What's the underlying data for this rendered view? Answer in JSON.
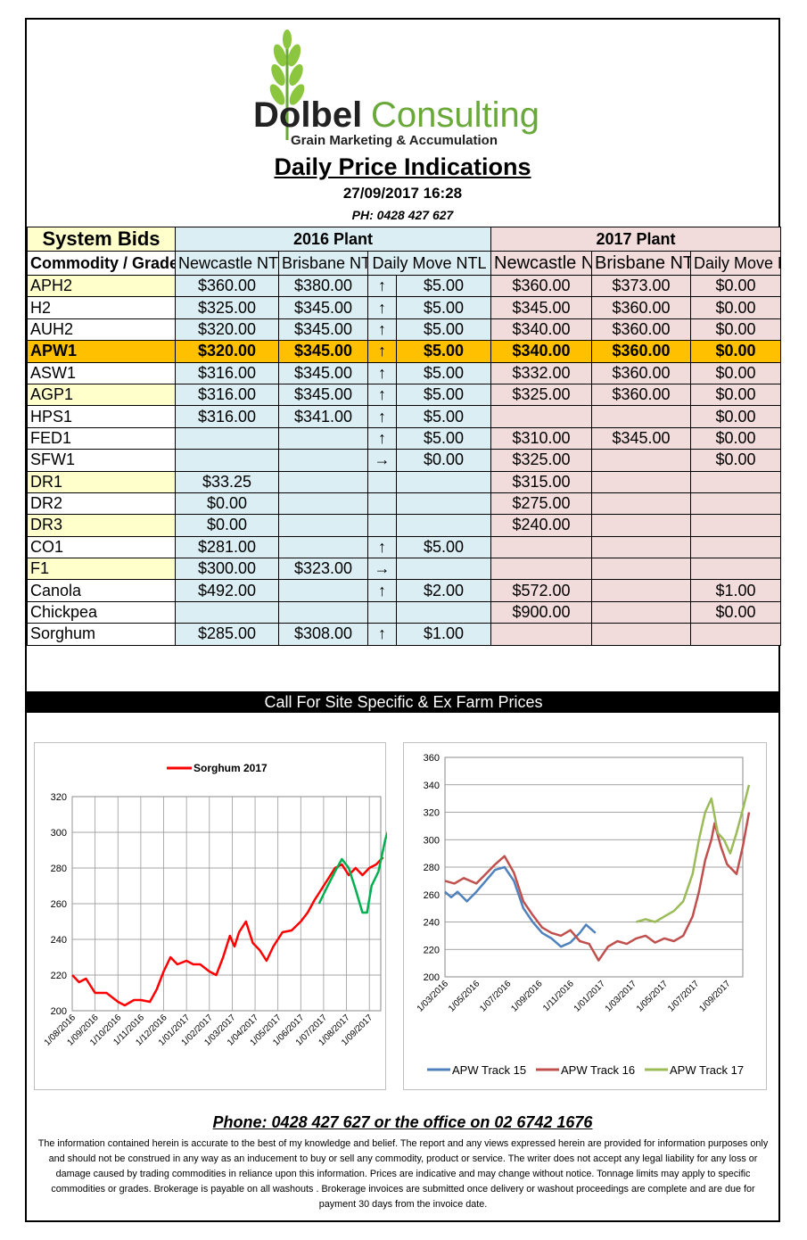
{
  "logo": {
    "brand_bold": "Dolbel",
    "brand_light": "Consulting",
    "tagline": "Grain Marketing & Accumulation"
  },
  "header": {
    "title": "Daily Price Indications",
    "datetime": "27/09/2017 16:28",
    "phone": "PH: 0428 427 627"
  },
  "table": {
    "system_bids": "System Bids",
    "plant_2016": "2016 Plant",
    "plant_2017": "2017 Plant",
    "col_commodity": "Commodity / Grade / NTP",
    "col_newcastle_2016": "Newcastle NTP TRK",
    "col_brisbane_2016": "Brisbane NTP TRK",
    "col_daily_2016": "Daily Move NTL",
    "col_newcastle_2017": "Newcastle NTP TRK",
    "col_brisbane_2017": "Brisbane NTP TRK",
    "col_daily_2017": "Daily Move NTL",
    "rows": [
      {
        "grade": "APH2",
        "n16": "$360.00",
        "b16": "$380.00",
        "arrow": "↑",
        "d16": "$5.00",
        "n17": "$360.00",
        "b17": "$373.00",
        "d17": "$0.00",
        "hl": "yl"
      },
      {
        "grade": "H2",
        "n16": "$325.00",
        "b16": "$345.00",
        "arrow": "↑",
        "d16": "$5.00",
        "n17": "$345.00",
        "b17": "$360.00",
        "d17": "$0.00",
        "hl": ""
      },
      {
        "grade": "AUH2",
        "n16": "$320.00",
        "b16": "$345.00",
        "arrow": "↑",
        "d16": "$5.00",
        "n17": "$340.00",
        "b17": "$360.00",
        "d17": "$0.00",
        "hl": ""
      },
      {
        "grade": "APW1",
        "n16": "$320.00",
        "b16": "$345.00",
        "arrow": "↑",
        "d16": "$5.00",
        "n17": "$340.00",
        "b17": "$360.00",
        "d17": "$0.00",
        "hl": "gold"
      },
      {
        "grade": "ASW1",
        "n16": "$316.00",
        "b16": "$345.00",
        "arrow": "↑",
        "d16": "$5.00",
        "n17": "$332.00",
        "b17": "$360.00",
        "d17": "$0.00",
        "hl": ""
      },
      {
        "grade": "AGP1",
        "n16": "$316.00",
        "b16": "$345.00",
        "arrow": "↑",
        "d16": "$5.00",
        "n17": "$325.00",
        "b17": "$360.00",
        "d17": "$0.00",
        "hl": "yl"
      },
      {
        "grade": "HPS1",
        "n16": "$316.00",
        "b16": "$341.00",
        "arrow": "↑",
        "d16": "$5.00",
        "n17": "",
        "b17": "",
        "d17": "$0.00",
        "hl": ""
      },
      {
        "grade": "FED1",
        "n16": "",
        "b16": "",
        "arrow": "↑",
        "d16": "$5.00",
        "n17": "$310.00",
        "b17": "$345.00",
        "d17": "$0.00",
        "hl": ""
      },
      {
        "grade": "SFW1",
        "n16": "",
        "b16": "",
        "arrow": "→",
        "d16": "$0.00",
        "n17": "$325.00",
        "b17": "",
        "d17": "$0.00",
        "hl": ""
      },
      {
        "grade": "DR1",
        "n16": "$33.25",
        "b16": "",
        "arrow": "",
        "d16": "",
        "n17": "$315.00",
        "b17": "",
        "d17": "",
        "hl": "yl"
      },
      {
        "grade": "DR2",
        "n16": "$0.00",
        "b16": "",
        "arrow": "",
        "d16": "",
        "n17": "$275.00",
        "b17": "",
        "d17": "",
        "hl": ""
      },
      {
        "grade": "DR3",
        "n16": "$0.00",
        "b16": "",
        "arrow": "",
        "d16": "",
        "n17": "$240.00",
        "b17": "",
        "d17": "",
        "hl": "yl"
      },
      {
        "grade": "CO1",
        "n16": "$281.00",
        "b16": "",
        "arrow": "↑",
        "d16": "$5.00",
        "n17": "",
        "b17": "",
        "d17": "",
        "hl": ""
      },
      {
        "grade": "F1",
        "n16": "$300.00",
        "b16": "$323.00",
        "arrow": "→",
        "d16": "",
        "n17": "",
        "b17": "",
        "d17": "",
        "hl": "yl"
      },
      {
        "grade": "Canola",
        "n16": "$492.00",
        "b16": "",
        "arrow": "↑",
        "d16": "$2.00",
        "n17": "$572.00",
        "b17": "",
        "d17": "$1.00",
        "hl": ""
      },
      {
        "grade": "Chickpea",
        "n16": "",
        "b16": "",
        "arrow": "",
        "d16": "",
        "n17": "$900.00",
        "b17": "",
        "d17": "$0.00",
        "hl": ""
      },
      {
        "grade": "Sorghum",
        "n16": "$285.00",
        "b16": "$308.00",
        "arrow": "↑",
        "d16": "$1.00",
        "n17": "",
        "b17": "",
        "d17": "",
        "hl": ""
      }
    ]
  },
  "call_bar": "Call For Site Specific & Ex Farm Prices",
  "chart_data": [
    {
      "type": "line",
      "legend": "top-center",
      "ylim": [
        200,
        320
      ],
      "yticks": [
        "200",
        "220",
        "240",
        "260",
        "280",
        "300",
        "320"
      ],
      "xticks": [
        "1/08/2016",
        "1/09/2016",
        "1/10/2016",
        "1/11/2016",
        "1/12/2016",
        "1/01/2017",
        "1/02/2017",
        "1/03/2017",
        "1/04/2017",
        "1/05/2017",
        "1/06/2017",
        "1/07/2017",
        "1/08/2017",
        "1/09/2017"
      ],
      "series": [
        {
          "name": "Sorghum 2017",
          "color": "#ff0000",
          "values": [
            [
              0,
              220
            ],
            [
              0.3,
              216
            ],
            [
              0.6,
              218
            ],
            [
              1,
              210
            ],
            [
              1.5,
              210
            ],
            [
              2,
              205
            ],
            [
              2.3,
              203
            ],
            [
              2.7,
              206
            ],
            [
              3,
              206
            ],
            [
              3.4,
              205
            ],
            [
              3.7,
              212
            ],
            [
              4,
              222
            ],
            [
              4.3,
              230
            ],
            [
              4.6,
              226
            ],
            [
              5,
              228
            ],
            [
              5.3,
              226
            ],
            [
              5.6,
              226
            ],
            [
              6,
              222
            ],
            [
              6.3,
              220
            ],
            [
              6.6,
              230
            ],
            [
              6.9,
              242
            ],
            [
              7.1,
              236
            ],
            [
              7.3,
              244
            ],
            [
              7.6,
              250
            ],
            [
              7.9,
              238
            ],
            [
              8.2,
              234
            ],
            [
              8.5,
              228
            ],
            [
              8.8,
              236
            ],
            [
              9.2,
              244
            ],
            [
              9.6,
              245
            ],
            [
              10,
              250
            ],
            [
              10.3,
              255
            ],
            [
              10.6,
              262
            ],
            [
              10.9,
              268
            ],
            [
              11.2,
              274
            ],
            [
              11.5,
              280
            ],
            [
              11.8,
              282
            ],
            [
              12.1,
              276
            ],
            [
              12.4,
              280
            ],
            [
              12.7,
              276
            ],
            [
              13,
              280
            ],
            [
              13.3,
              282
            ],
            [
              13.6,
              286
            ]
          ]
        },
        {
          "name": "",
          "color": "#00b050",
          "values": [
            [
              10.8,
              260
            ],
            [
              11.1,
              268
            ],
            [
              11.5,
              278
            ],
            [
              11.8,
              285
            ],
            [
              12.1,
              280
            ],
            [
              12.4,
              268
            ],
            [
              12.7,
              255
            ],
            [
              12.9,
              255
            ],
            [
              13.1,
              270
            ],
            [
              13.4,
              278
            ],
            [
              13.7,
              296
            ],
            [
              13.85,
              302
            ]
          ]
        }
      ]
    },
    {
      "type": "line",
      "legend": "bottom",
      "ylim": [
        200,
        360
      ],
      "yticks": [
        "200",
        "220",
        "240",
        "260",
        "280",
        "300",
        "320",
        "340",
        "360"
      ],
      "xticks": [
        "1/03/2016",
        "1/05/2016",
        "1/07/2016",
        "1/09/2016",
        "1/11/2016",
        "1/01/2017",
        "1/03/2017",
        "1/05/2017",
        "1/07/2017",
        "1/09/2017"
      ],
      "series": [
        {
          "name": "APW Track 15",
          "color": "#4f81bd",
          "values": [
            [
              0,
              262
            ],
            [
              0.2,
              258
            ],
            [
              0.4,
              262
            ],
            [
              0.7,
              255
            ],
            [
              1,
              262
            ],
            [
              1.3,
              270
            ],
            [
              1.6,
              278
            ],
            [
              1.9,
              280
            ],
            [
              2.2,
              270
            ],
            [
              2.5,
              250
            ],
            [
              2.8,
              240
            ],
            [
              3.1,
              232
            ],
            [
              3.4,
              228
            ],
            [
              3.7,
              222
            ],
            [
              4,
              225
            ],
            [
              4.3,
              232
            ],
            [
              4.5,
              238
            ],
            [
              4.8,
              232
            ]
          ]
        },
        {
          "name": "APW Track 16",
          "color": "#c0504d",
          "values": [
            [
              0,
              270
            ],
            [
              0.3,
              268
            ],
            [
              0.6,
              272
            ],
            [
              1,
              268
            ],
            [
              1.3,
              275
            ],
            [
              1.6,
              282
            ],
            [
              1.9,
              288
            ],
            [
              2.2,
              276
            ],
            [
              2.5,
              255
            ],
            [
              2.8,
              245
            ],
            [
              3.1,
              236
            ],
            [
              3.4,
              232
            ],
            [
              3.7,
              230
            ],
            [
              4,
              234
            ],
            [
              4.3,
              226
            ],
            [
              4.6,
              224
            ],
            [
              4.9,
              212
            ],
            [
              5.2,
              222
            ],
            [
              5.5,
              226
            ],
            [
              5.8,
              224
            ],
            [
              6.1,
              228
            ],
            [
              6.4,
              230
            ],
            [
              6.7,
              225
            ],
            [
              7,
              228
            ],
            [
              7.3,
              226
            ],
            [
              7.6,
              230
            ],
            [
              7.9,
              244
            ],
            [
              8.1,
              262
            ],
            [
              8.3,
              285
            ],
            [
              8.5,
              300
            ],
            [
              8.6,
              312
            ],
            [
              8.8,
              295
            ],
            [
              9,
              282
            ],
            [
              9.3,
              275
            ],
            [
              9.5,
              295
            ],
            [
              9.7,
              320
            ]
          ]
        },
        {
          "name": "APW Track 17",
          "color": "#9bbb59",
          "values": [
            [
              6.1,
              240
            ],
            [
              6.4,
              242
            ],
            [
              6.7,
              240
            ],
            [
              7,
              244
            ],
            [
              7.3,
              248
            ],
            [
              7.6,
              255
            ],
            [
              7.9,
              275
            ],
            [
              8.1,
              300
            ],
            [
              8.3,
              320
            ],
            [
              8.5,
              330
            ],
            [
              8.7,
              305
            ],
            [
              8.9,
              300
            ],
            [
              9.1,
              290
            ],
            [
              9.3,
              305
            ],
            [
              9.5,
              322
            ],
            [
              9.7,
              340
            ]
          ]
        }
      ]
    }
  ],
  "footer": {
    "phone_line": "Phone: 0428 427 627 or the office on 02 6742 1676",
    "disclaimer": "The information contained herein is accurate to the best of my knowledge and belief.  The report and any views expressed herein are provided for information purposes only and should not be construed in any way as an inducement to buy or sell any commodity, product or service. The writer does not accept any legal liability for any loss or damage caused by trading commodities in reliance upon this information. Prices are indicative and may change without notice. Tonnage limits may apply to specific commodities or grades.  Brokerage is payable on all washouts . Brokerage invoices are submitted once delivery or washout proceedings are complete and are due for payment 30 days from the invoice date."
  }
}
